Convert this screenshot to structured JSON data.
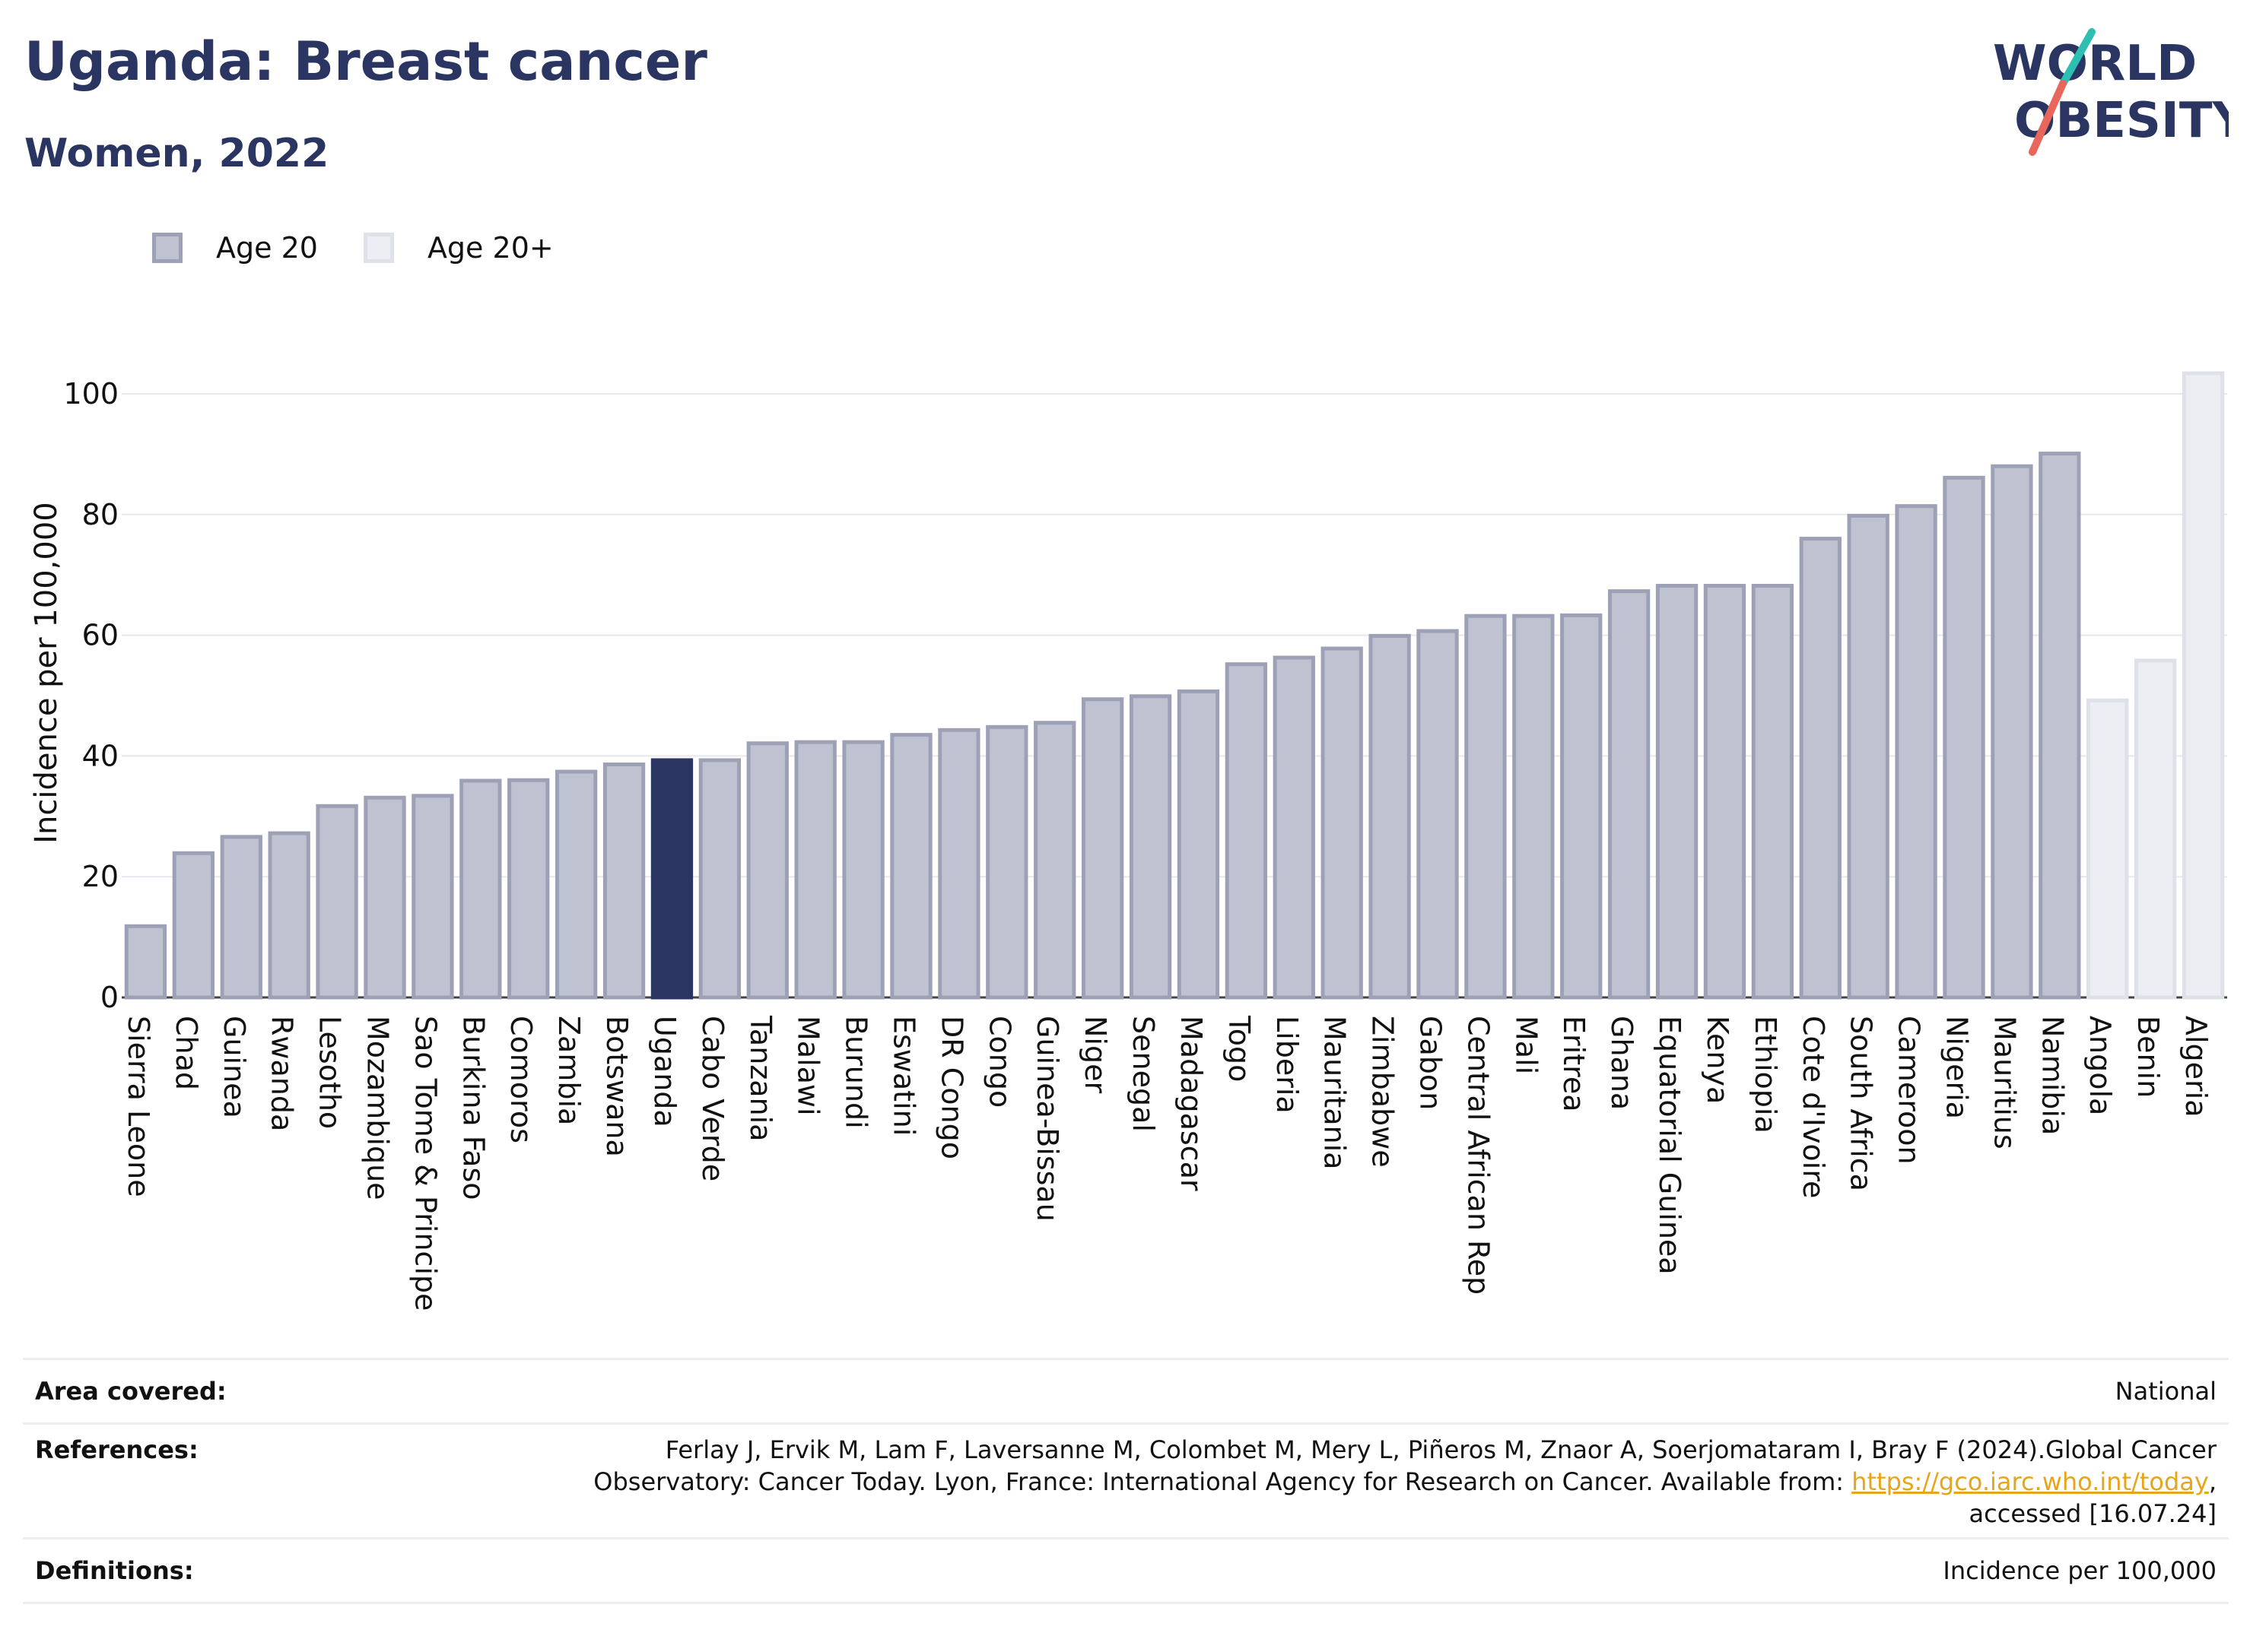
{
  "header": {
    "title": "Uganda: Breast cancer",
    "subtitle": "Women, 2022"
  },
  "logo": {
    "line1": "WORLD",
    "line2": "OBESITY",
    "brand_color": "#2b3561",
    "accent_teal": "#2ebfb3",
    "accent_coral": "#e8675a"
  },
  "legend": [
    {
      "label": "Age 20",
      "color": "#bfc3d1",
      "border": "#9da1b5"
    },
    {
      "label": "Age 20+",
      "color": "#eceef3",
      "border": "#dfe1e8"
    }
  ],
  "chart_data": {
    "type": "bar",
    "ylabel": "Incidence per 100,000",
    "xlabel": "",
    "ylim": [
      0,
      105
    ],
    "yticks": [
      0,
      20,
      40,
      60,
      80,
      100
    ],
    "grid": true,
    "highlight": "Uganda",
    "highlight_color": "#2b3561",
    "categories": [
      "Sierra Leone",
      "Chad",
      "Guinea",
      "Rwanda",
      "Lesotho",
      "Mozambique",
      "Sao Tome & Principe",
      "Burkina Faso",
      "Comoros",
      "Zambia",
      "Botswana",
      "Uganda",
      "Cabo Verde",
      "Tanzania",
      "Malawi",
      "Burundi",
      "Eswatini",
      "DR Congo",
      "Congo",
      "Guinea-Bissau",
      "Niger",
      "Senegal",
      "Madagascar",
      "Togo",
      "Liberia",
      "Mauritania",
      "Zimbabwe",
      "Gabon",
      "Central African Rep",
      "Mali",
      "Eritrea",
      "Ghana",
      "Equatorial Guinea",
      "Kenya",
      "Ethiopia",
      "Cote d'Ivoire",
      "South Africa",
      "Cameroon",
      "Nigeria",
      "Mauritius",
      "Namibia",
      "Angola",
      "Benin",
      "Algeria"
    ],
    "values": [
      11.8,
      23.9,
      26.6,
      27.2,
      31.7,
      33.1,
      33.4,
      35.9,
      36.0,
      37.4,
      38.6,
      39.3,
      39.3,
      42.1,
      42.3,
      42.3,
      43.5,
      44.3,
      44.8,
      45.5,
      49.4,
      49.9,
      50.7,
      55.2,
      56.3,
      57.8,
      59.9,
      60.7,
      63.2,
      63.2,
      63.3,
      67.3,
      68.2,
      68.2,
      68.2,
      76.0,
      79.8,
      81.4,
      86.1,
      88.0,
      90.1,
      49.2,
      55.8,
      103.4
    ],
    "series_group": [
      "Age 20",
      "Age 20",
      "Age 20",
      "Age 20",
      "Age 20",
      "Age 20",
      "Age 20",
      "Age 20",
      "Age 20",
      "Age 20",
      "Age 20",
      "Age 20",
      "Age 20",
      "Age 20",
      "Age 20",
      "Age 20",
      "Age 20",
      "Age 20",
      "Age 20",
      "Age 20",
      "Age 20",
      "Age 20",
      "Age 20",
      "Age 20",
      "Age 20",
      "Age 20",
      "Age 20",
      "Age 20",
      "Age 20",
      "Age 20",
      "Age 20",
      "Age 20",
      "Age 20",
      "Age 20",
      "Age 20",
      "Age 20",
      "Age 20",
      "Age 20",
      "Age 20",
      "Age 20",
      "Age 20",
      "Age 20+",
      "Age 20+",
      "Age 20+"
    ]
  },
  "info_table": {
    "area_label": "Area covered:",
    "area_value": "National",
    "references_label": "References:",
    "references_line1": "Ferlay J, Ervik M, Lam F, Laversanne M, Colombet M, Mery L, Piñeros M, Znaor A, Soerjomataram I, Bray F (2024).Global Cancer",
    "references_line2_prefix": "Observatory: Cancer Today. Lyon, France: International Agency for Research on Cancer. Available from: ",
    "references_link": "https://gco.iarc.who.int/today",
    "references_line2_suffix": ",",
    "references_line3": "accessed [16.07.24]",
    "definitions_label": "Definitions:",
    "definitions_value": "Incidence per 100,000"
  }
}
